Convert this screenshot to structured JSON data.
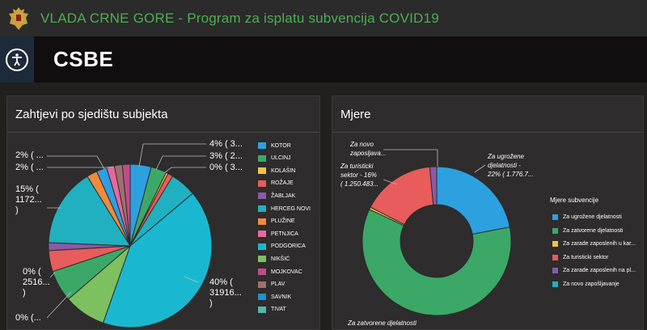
{
  "header": {
    "title": "VLADA CRNE GORE - Program za isplatu subvencija COVID19",
    "crest_icon": "montenegro-crest-icon"
  },
  "page": {
    "title": "CSBE",
    "accessibility_icon": "accessibility-icon"
  },
  "panels": {
    "left": {
      "title": "Zahtjevi po sjedištu subjekta"
    },
    "right": {
      "title": "Mjere",
      "legend_title": "Mjere subvencije"
    }
  },
  "left_labels": {
    "kotor": "4% ( 3...",
    "ulcinj": "3% ( 2...",
    "kolasin": "0% ( 3...",
    "l2a": "2% ( ...",
    "l2b": "2% ( ...",
    "l15": "15% (\n1172...\n)",
    "l0a": "0% (\n2516...\n)",
    "l0b": "0% (...",
    "l40": "40% (\n31916...\n)"
  },
  "right_labels": {
    "novo": "Za novo\nzaposljava...",
    "turisticki": "Za turisticki\nsektor - 16%\n( 1.250.483...",
    "ugrozene": "Za ugrožene\ndjelatnosti -\n22% ( 1.776.7...",
    "zatvorene": "Za zatvorene djelatnosti"
  },
  "chart_data": [
    {
      "type": "pie",
      "title": "Zahtjevi po sjedištu subjekta",
      "categories": [
        "KOTOR",
        "ULCINJ",
        "KOLAŠIN",
        "ROŽAJE",
        "ŽABLJAK",
        "HERCEG NOVI",
        "PLUŽINE",
        "PETNJICA",
        "PODGORICA",
        "NIKŠIĆ",
        "MOJKOVAC",
        "PLAV",
        "SAVNIK",
        "TIVAT"
      ],
      "colors": [
        "#2da0e0",
        "#3ca868",
        "#f6c33c",
        "#e85c5c",
        "#8b5aa8",
        "#20b0c0",
        "#f08a3c",
        "#e868a0",
        "#1ab8d0",
        "#7cc060",
        "#c04c8c",
        "#a07070",
        "#2090d0",
        "#50b8a8"
      ],
      "values": [
        4,
        3,
        0.4,
        0.4,
        0.5,
        5,
        0.3,
        0.3,
        40,
        8,
        0.4,
        0.4,
        0.4,
        0.4
      ],
      "extra_slices": [
        {
          "value": 6,
          "color": "#3ca868"
        },
        {
          "value": 4,
          "color": "#e85c5c"
        },
        {
          "value": 1.5,
          "color": "#8b5aa8"
        },
        {
          "value": 15,
          "color": "#20b0c0"
        },
        {
          "value": 2,
          "color": "#f08a3c"
        },
        {
          "value": 2,
          "color": "#2da0e0"
        },
        {
          "value": 1,
          "color": "#e868a0"
        },
        {
          "value": 1,
          "color": "#a07070"
        },
        {
          "value": 1,
          "color": "#c04c8c"
        },
        {
          "value": 1,
          "color": "#e85c5c"
        }
      ]
    },
    {
      "type": "pie",
      "title": "Mjere",
      "legend_title": "Mjere subvencije",
      "categories": [
        "Za ugrožene djelatnosti",
        "Za zatvorene djelatnosti",
        "Za zarade zaposlenih u kar...",
        "Za turisticki sektor",
        "Za zarade zaposlenih na pl...",
        "Za novo zapošljavanje"
      ],
      "colors": [
        "#2da0e0",
        "#3ca868",
        "#f6c33c",
        "#e85c5c",
        "#8b5aa8",
        "#20b0c0"
      ],
      "values": [
        22,
        60,
        0.5,
        16,
        1.5,
        0.5
      ]
    }
  ]
}
